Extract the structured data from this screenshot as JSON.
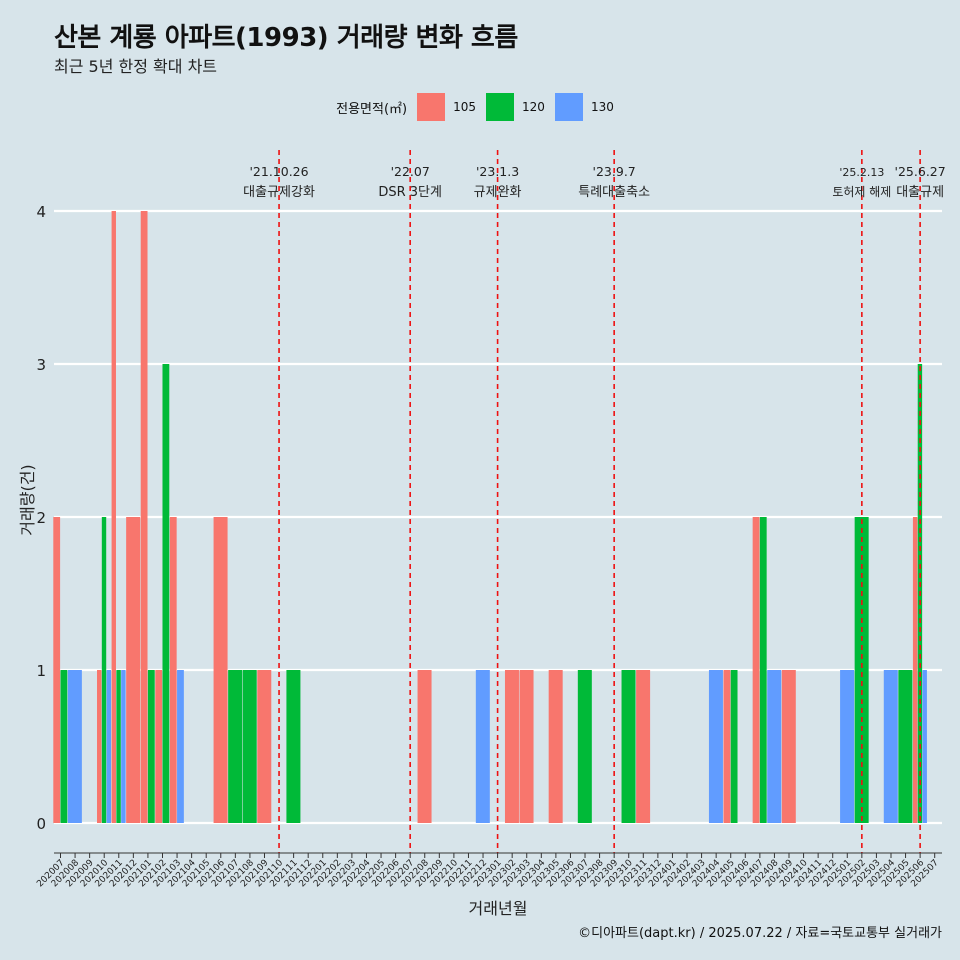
{
  "title": "산본 계룡 아파트(1993) 거래량 변화 흐름",
  "subtitle": "최근 5년 한정 확대 차트",
  "caption": "©디아파트(dapt.kr) / 2025.07.22 / 자료=국토교통부 실거래가",
  "legend": {
    "title": "전용면적(㎡)",
    "items": [
      {
        "label": "105",
        "color": "#f8766d"
      },
      {
        "label": "120",
        "color": "#00ba38"
      },
      {
        "label": "130",
        "color": "#619cff"
      }
    ]
  },
  "chart_data": {
    "type": "bar",
    "xlabel": "거래년월",
    "ylabel": "거래량(건)",
    "ylim": [
      0,
      4
    ],
    "yticks": [
      0,
      1,
      2,
      3,
      4
    ],
    "categories": [
      "202007",
      "202008",
      "202009",
      "202010",
      "202011",
      "202012",
      "202101",
      "202102",
      "202103",
      "202104",
      "202105",
      "202106",
      "202107",
      "202108",
      "202109",
      "202110",
      "202111",
      "202112",
      "202201",
      "202202",
      "202203",
      "202204",
      "202205",
      "202206",
      "202207",
      "202208",
      "202209",
      "202210",
      "202211",
      "202212",
      "202301",
      "202302",
      "202303",
      "202304",
      "202305",
      "202306",
      "202307",
      "202308",
      "202309",
      "202310",
      "202311",
      "202312",
      "202401",
      "202402",
      "202403",
      "202404",
      "202405",
      "202406",
      "202407",
      "202408",
      "202409",
      "202410",
      "202411",
      "202412",
      "202501",
      "202502",
      "202503",
      "202504",
      "202505",
      "202506",
      "202507"
    ],
    "series": [
      {
        "name": "105",
        "color": "#f8766d",
        "values": [
          2,
          0,
          0,
          1,
          4,
          2,
          4,
          1,
          2,
          0,
          0,
          2,
          0,
          0,
          1,
          0,
          0,
          0,
          0,
          0,
          0,
          0,
          0,
          0,
          0,
          1,
          0,
          0,
          0,
          0,
          0,
          1,
          1,
          0,
          1,
          0,
          0,
          0,
          0,
          0,
          1,
          0,
          0,
          0,
          0,
          0,
          1,
          0,
          2,
          0,
          1,
          0,
          0,
          0,
          0,
          0,
          0,
          0,
          0,
          2,
          0
        ]
      },
      {
        "name": "120",
        "color": "#00ba38",
        "values": [
          1,
          0,
          0,
          2,
          1,
          0,
          1,
          3,
          0,
          0,
          0,
          0,
          1,
          1,
          0,
          0,
          1,
          0,
          0,
          0,
          0,
          0,
          0,
          0,
          0,
          0,
          0,
          0,
          0,
          0,
          0,
          0,
          0,
          0,
          0,
          0,
          1,
          0,
          0,
          1,
          0,
          0,
          0,
          0,
          0,
          0,
          1,
          0,
          2,
          0,
          0,
          0,
          0,
          0,
          0,
          2,
          0,
          0,
          1,
          3,
          0
        ]
      },
      {
        "name": "130",
        "color": "#619cff",
        "values": [
          0,
          1,
          0,
          1,
          1,
          0,
          0,
          0,
          1,
          0,
          0,
          0,
          0,
          0,
          0,
          0,
          0,
          0,
          0,
          0,
          0,
          0,
          0,
          0,
          0,
          0,
          0,
          0,
          0,
          1,
          0,
          0,
          0,
          0,
          0,
          0,
          0,
          0,
          0,
          0,
          0,
          0,
          0,
          0,
          0,
          1,
          0,
          0,
          0,
          1,
          0,
          0,
          0,
          0,
          1,
          0,
          0,
          1,
          0,
          1,
          0
        ]
      }
    ],
    "annotations": [
      {
        "date": "'21.10.26",
        "label": "대출규제강화",
        "x": "202110"
      },
      {
        "date": "'22.07",
        "label": "DSR 3단계",
        "x": "202207"
      },
      {
        "date": "'23.1.3",
        "label": "규제완화",
        "x": "202301"
      },
      {
        "date": "'23.9.7",
        "label": "특례대출축소",
        "x": "202309"
      },
      {
        "date": "'25.2.13",
        "label": "토허제 해제",
        "x": "202502"
      },
      {
        "date": "'25.6.27",
        "label": "대출규제",
        "x": "202506"
      }
    ]
  }
}
